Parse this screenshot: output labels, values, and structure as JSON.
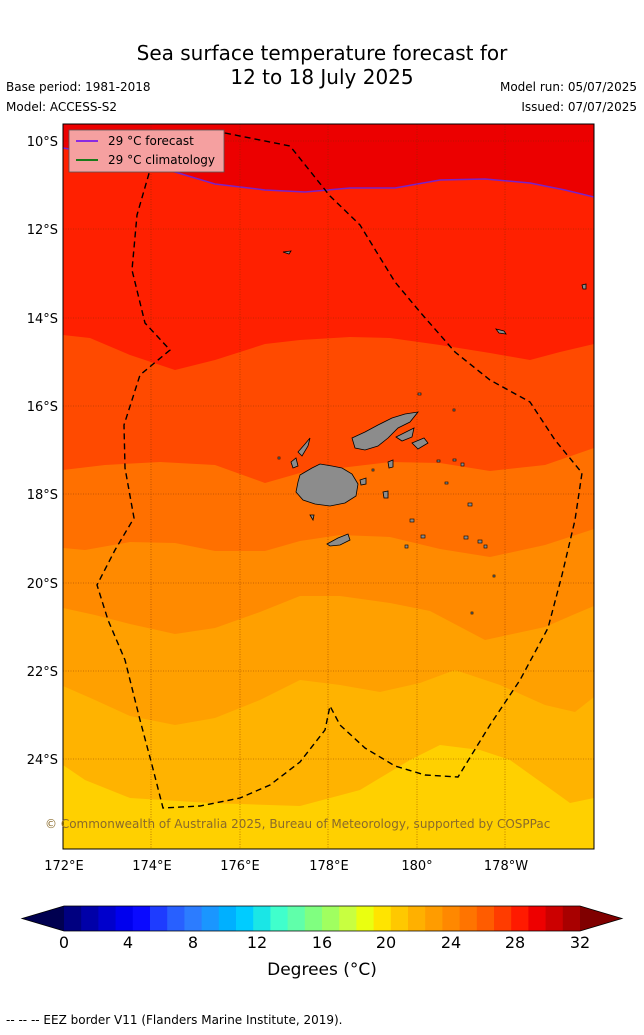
{
  "title_line1": "Sea surface temperature forecast for",
  "title_line2": "12 to 18 July 2025",
  "base_period": "Base period: 1981-2018",
  "model": "Model: ACCESS-S2",
  "model_run": "Model run: 05/07/2025",
  "issued": "Issued: 07/07/2025",
  "legend": {
    "forecast": "29 °C  forecast",
    "climatology": "29 °C  climatology",
    "forecast_color": "#8a2be2",
    "climatology_color": "#1a7a1a"
  },
  "latitude_labels": [
    "10°S",
    "12°S",
    "14°S",
    "16°S",
    "18°S",
    "20°S",
    "22°S",
    "24°S"
  ],
  "longitude_labels": [
    "172°E",
    "174°E",
    "176°E",
    "178°E",
    "180°",
    "178°W"
  ],
  "copyright": "© Commonwealth of Australia 2025, Bureau of Meteorology, supported by COSPPac",
  "colorbar": {
    "ticks": [
      "0",
      "4",
      "8",
      "12",
      "16",
      "20",
      "24",
      "28",
      "32"
    ],
    "label": "Degrees (°C)",
    "colors": [
      "#000080",
      "#0000a8",
      "#0000cc",
      "#0000ee",
      "#0a0aff",
      "#1e3cff",
      "#2860ff",
      "#2c7cff",
      "#1a96ff",
      "#00b0ff",
      "#00ccff",
      "#1ae6e6",
      "#40ffcc",
      "#60ffaa",
      "#80ff80",
      "#a0ff60",
      "#c8ff40",
      "#eaff10",
      "#ffe400",
      "#ffc800",
      "#ffb000",
      "#ff9c00",
      "#ff8800",
      "#ff7400",
      "#ff5c00",
      "#ff3c00",
      "#ff1a00",
      "#ee0000",
      "#cc0000",
      "#a80000"
    ]
  },
  "footer": "--  --  -- EEZ border V11 (Flanders Marine Institute, 2019)."
}
